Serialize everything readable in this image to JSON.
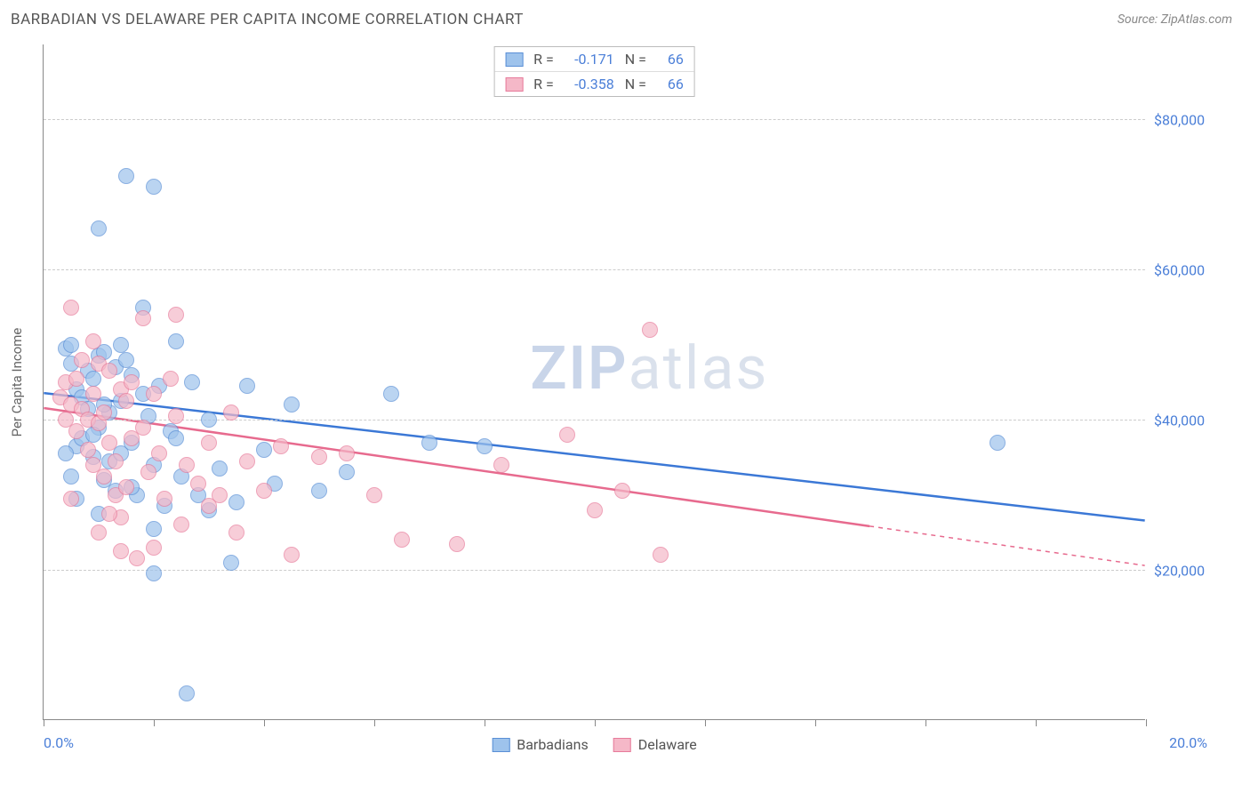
{
  "header": {
    "title": "BARBADIAN VS DELAWARE PER CAPITA INCOME CORRELATION CHART",
    "source": "Source: ZipAtlas.com"
  },
  "watermark": {
    "part1": "ZIP",
    "part2": "atlas"
  },
  "chart": {
    "type": "scatter",
    "background_color": "#ffffff",
    "grid_color": "#cccccc",
    "axis_color": "#888888",
    "text_color": "#666666",
    "tick_label_color": "#4b7fd8",
    "y_axis_title": "Per Capita Income",
    "xlim": [
      0,
      20
    ],
    "ylim": [
      0,
      90000
    ],
    "x_ticks": [
      0,
      2,
      4,
      6,
      8,
      10,
      12,
      14,
      16,
      18,
      20
    ],
    "x_tick_labels": {
      "min": "0.0%",
      "max": "20.0%"
    },
    "y_gridlines": [
      20000,
      40000,
      60000,
      80000
    ],
    "y_tick_labels": [
      "$20,000",
      "$40,000",
      "$60,000",
      "$80,000"
    ],
    "marker_radius": 9,
    "marker_fill_opacity": 0.35,
    "marker_stroke_width": 1.5,
    "trend_line_width": 2.5,
    "series": [
      {
        "name": "Barbadians",
        "color_fill": "#9ec3ec",
        "color_stroke": "#5a8fd6",
        "color_line": "#3b78d6",
        "r_value": "-0.171",
        "n_value": "66",
        "trend": {
          "x1": 0,
          "y1": 43500,
          "x2": 20,
          "y2": 26500,
          "dashed_from_x": null
        },
        "points": [
          [
            0.4,
            49500
          ],
          [
            0.5,
            47500
          ],
          [
            0.5,
            50000
          ],
          [
            0.6,
            44000
          ],
          [
            0.6,
            36500
          ],
          [
            0.7,
            43000
          ],
          [
            0.7,
            37500
          ],
          [
            0.8,
            41500
          ],
          [
            0.8,
            46500
          ],
          [
            0.9,
            45500
          ],
          [
            0.9,
            35000
          ],
          [
            1.0,
            48500
          ],
          [
            1.0,
            39000
          ],
          [
            1.0,
            65500
          ],
          [
            1.1,
            49000
          ],
          [
            1.1,
            32000
          ],
          [
            1.2,
            41000
          ],
          [
            1.2,
            34500
          ],
          [
            1.3,
            47000
          ],
          [
            1.3,
            30500
          ],
          [
            1.4,
            42500
          ],
          [
            1.4,
            35500
          ],
          [
            1.5,
            72500
          ],
          [
            1.5,
            48000
          ],
          [
            1.6,
            37000
          ],
          [
            1.6,
            46000
          ],
          [
            1.7,
            30000
          ],
          [
            1.8,
            43500
          ],
          [
            1.8,
            55000
          ],
          [
            1.9,
            40500
          ],
          [
            2.0,
            71000
          ],
          [
            2.0,
            19500
          ],
          [
            2.0,
            34000
          ],
          [
            2.1,
            44500
          ],
          [
            2.2,
            28500
          ],
          [
            2.3,
            38500
          ],
          [
            2.4,
            50500
          ],
          [
            2.5,
            32500
          ],
          [
            2.6,
            3500
          ],
          [
            2.7,
            45000
          ],
          [
            2.8,
            30000
          ],
          [
            3.0,
            28000
          ],
          [
            3.0,
            40000
          ],
          [
            3.2,
            33500
          ],
          [
            3.4,
            21000
          ],
          [
            3.5,
            29000
          ],
          [
            3.7,
            44500
          ],
          [
            4.0,
            36000
          ],
          [
            4.2,
            31500
          ],
          [
            4.5,
            42000
          ],
          [
            5.0,
            30500
          ],
          [
            5.5,
            33000
          ],
          [
            6.3,
            43500
          ],
          [
            7.0,
            37000
          ],
          [
            8.0,
            36500
          ],
          [
            17.3,
            37000
          ],
          [
            0.4,
            35500
          ],
          [
            0.5,
            32500
          ],
          [
            0.6,
            29500
          ],
          [
            1.0,
            27500
          ],
          [
            1.6,
            31000
          ],
          [
            2.0,
            25500
          ],
          [
            2.4,
            37500
          ],
          [
            1.1,
            42000
          ],
          [
            1.4,
            50000
          ],
          [
            0.9,
            38000
          ]
        ]
      },
      {
        "name": "Delaware",
        "color_fill": "#f5b8c8",
        "color_stroke": "#e77b9b",
        "color_line": "#e76a8e",
        "r_value": "-0.358",
        "n_value": "66",
        "trend": {
          "x1": 0,
          "y1": 41500,
          "x2": 20,
          "y2": 20500,
          "dashed_from_x": 15
        },
        "points": [
          [
            0.3,
            43000
          ],
          [
            0.4,
            45000
          ],
          [
            0.4,
            40000
          ],
          [
            0.5,
            42000
          ],
          [
            0.5,
            55000
          ],
          [
            0.6,
            45500
          ],
          [
            0.6,
            38500
          ],
          [
            0.7,
            41500
          ],
          [
            0.7,
            48000
          ],
          [
            0.8,
            40000
          ],
          [
            0.8,
            36000
          ],
          [
            0.9,
            43500
          ],
          [
            0.9,
            34000
          ],
          [
            1.0,
            47500
          ],
          [
            1.0,
            39500
          ],
          [
            1.1,
            41000
          ],
          [
            1.1,
            32500
          ],
          [
            1.2,
            46500
          ],
          [
            1.2,
            37000
          ],
          [
            1.3,
            34500
          ],
          [
            1.3,
            30000
          ],
          [
            1.4,
            44000
          ],
          [
            1.4,
            27000
          ],
          [
            1.5,
            42500
          ],
          [
            1.5,
            31000
          ],
          [
            1.6,
            37500
          ],
          [
            1.6,
            45000
          ],
          [
            1.7,
            21500
          ],
          [
            1.8,
            39000
          ],
          [
            1.8,
            53500
          ],
          [
            1.9,
            33000
          ],
          [
            2.0,
            43500
          ],
          [
            2.0,
            23000
          ],
          [
            2.1,
            35500
          ],
          [
            2.2,
            29500
          ],
          [
            2.3,
            45500
          ],
          [
            2.4,
            40500
          ],
          [
            2.5,
            26000
          ],
          [
            2.6,
            34000
          ],
          [
            2.8,
            31500
          ],
          [
            3.0,
            37000
          ],
          [
            3.0,
            28500
          ],
          [
            3.2,
            30000
          ],
          [
            3.4,
            41000
          ],
          [
            3.5,
            25000
          ],
          [
            3.7,
            34500
          ],
          [
            4.0,
            30500
          ],
          [
            4.3,
            36500
          ],
          [
            4.5,
            22000
          ],
          [
            5.0,
            35000
          ],
          [
            5.5,
            35500
          ],
          [
            6.0,
            30000
          ],
          [
            6.5,
            24000
          ],
          [
            7.5,
            23500
          ],
          [
            8.3,
            34000
          ],
          [
            9.5,
            38000
          ],
          [
            10.0,
            28000
          ],
          [
            10.5,
            30500
          ],
          [
            11.0,
            52000
          ],
          [
            11.2,
            22000
          ],
          [
            0.5,
            29500
          ],
          [
            1.0,
            25000
          ],
          [
            1.4,
            22500
          ],
          [
            2.4,
            54000
          ],
          [
            0.9,
            50500
          ],
          [
            1.2,
            27500
          ]
        ]
      }
    ]
  },
  "legend_top": {
    "r_label": "R =",
    "n_label": "N ="
  },
  "legend_bottom": {
    "items": [
      "Barbadians",
      "Delaware"
    ]
  }
}
